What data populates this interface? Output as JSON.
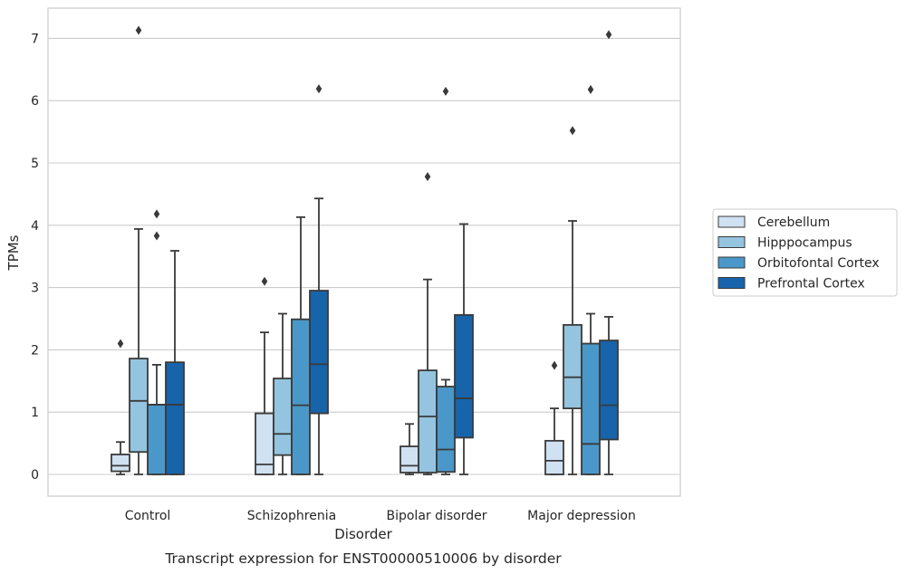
{
  "chart_data": {
    "type": "boxplot",
    "title": "",
    "caption": "Transcript expression for ENST00000510006 by disorder",
    "xlabel": "Disorder",
    "ylabel": "TPMs",
    "ylim": [
      -0.35,
      7.5
    ],
    "yticks": [
      0,
      1,
      2,
      3,
      4,
      5,
      6,
      7
    ],
    "grid": "horizontal",
    "legend_placement": "right",
    "categories": [
      "Control",
      "Schizophrenia",
      "Bipolar disorder",
      "Major depression"
    ],
    "series": [
      {
        "name": "Cerebellum",
        "color": "#d0e1f2",
        "boxes": [
          {
            "whisker_low": 0.0,
            "q1": 0.05,
            "median": 0.14,
            "q3": 0.32,
            "whisker_high": 0.52,
            "outliers": [
              2.1
            ]
          },
          {
            "whisker_low": 0.0,
            "q1": 0.0,
            "median": 0.16,
            "q3": 0.98,
            "whisker_high": 2.28,
            "outliers": [
              3.1
            ]
          },
          {
            "whisker_low": 0.0,
            "q1": 0.03,
            "median": 0.14,
            "q3": 0.45,
            "whisker_high": 0.81,
            "outliers": []
          },
          {
            "whisker_low": 0.0,
            "q1": 0.0,
            "median": 0.22,
            "q3": 0.54,
            "whisker_high": 1.06,
            "outliers": [
              1.75
            ]
          }
        ]
      },
      {
        "name": "Hipppocampus",
        "color": "#94c4df",
        "boxes": [
          {
            "whisker_low": 0.0,
            "q1": 0.36,
            "median": 1.18,
            "q3": 1.86,
            "whisker_high": 3.94,
            "outliers": [
              7.13
            ]
          },
          {
            "whisker_low": 0.0,
            "q1": 0.31,
            "median": 0.65,
            "q3": 1.54,
            "whisker_high": 2.58,
            "outliers": []
          },
          {
            "whisker_low": 0.0,
            "q1": 0.03,
            "median": 0.93,
            "q3": 1.67,
            "whisker_high": 3.13,
            "outliers": [
              4.78
            ]
          },
          {
            "whisker_low": 0.0,
            "q1": 1.06,
            "median": 1.56,
            "q3": 2.4,
            "whisker_high": 4.07,
            "outliers": [
              5.52
            ]
          }
        ]
      },
      {
        "name": "Orbitofontal Cortex",
        "color": "#4a98c9",
        "boxes": [
          {
            "whisker_low": 0.0,
            "q1": 0.0,
            "median": 1.12,
            "q3": 1.12,
            "whisker_high": 1.76,
            "outliers": [
              3.83,
              4.18
            ]
          },
          {
            "whisker_low": 0.0,
            "q1": 0.0,
            "median": 1.11,
            "q3": 2.49,
            "whisker_high": 4.13,
            "outliers": []
          },
          {
            "whisker_low": 0.0,
            "q1": 0.04,
            "median": 0.4,
            "q3": 1.41,
            "whisker_high": 1.52,
            "outliers": [
              6.15
            ]
          },
          {
            "whisker_low": 0.0,
            "q1": 0.0,
            "median": 0.49,
            "q3": 2.1,
            "whisker_high": 2.58,
            "outliers": [
              6.18
            ]
          }
        ]
      },
      {
        "name": "Prefrontal Cortex",
        "color": "#1764ab",
        "boxes": [
          {
            "whisker_low": 0.0,
            "q1": 0.0,
            "median": 1.12,
            "q3": 1.8,
            "whisker_high": 3.59,
            "outliers": []
          },
          {
            "whisker_low": 0.0,
            "q1": 0.98,
            "median": 1.77,
            "q3": 2.95,
            "whisker_high": 4.43,
            "outliers": [
              6.19
            ]
          },
          {
            "whisker_low": 0.0,
            "q1": 0.59,
            "median": 1.22,
            "q3": 2.56,
            "whisker_high": 4.02,
            "outliers": []
          },
          {
            "whisker_low": 0.0,
            "q1": 0.56,
            "median": 1.11,
            "q3": 2.15,
            "whisker_high": 2.53,
            "outliers": [
              7.06
            ]
          }
        ]
      }
    ]
  }
}
